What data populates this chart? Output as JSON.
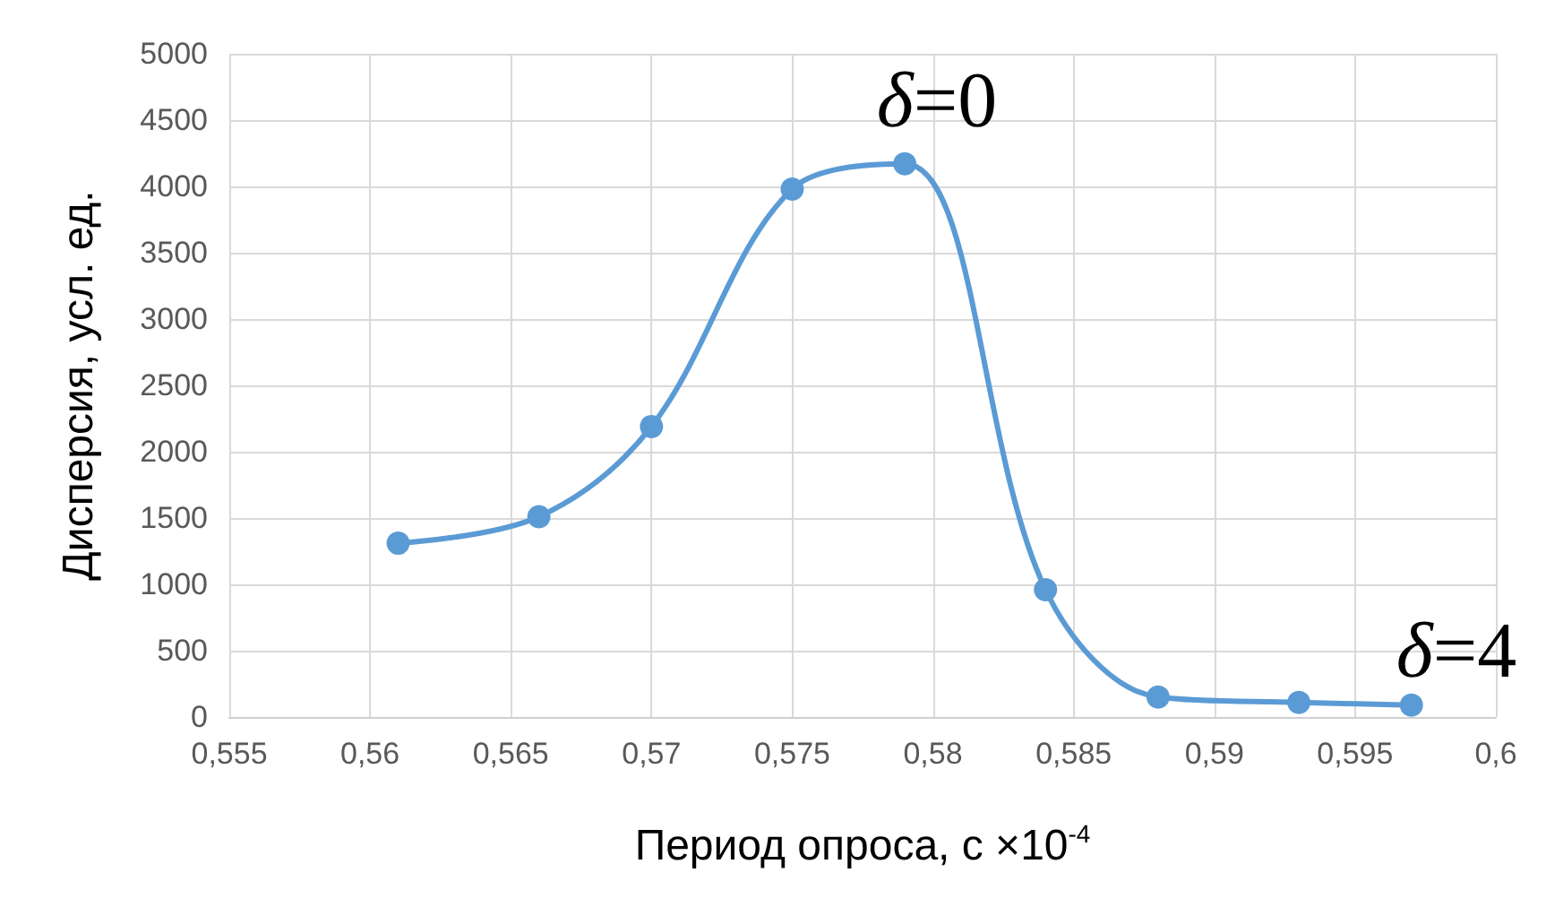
{
  "chart_data": {
    "type": "line",
    "xlabel": "Период опроса, с ×10$^{-4}$",
    "ylabel": "Дисперсия, усл. ед.",
    "x": [
      0.561,
      0.566,
      0.57,
      0.575,
      0.579,
      0.584,
      0.588,
      0.593,
      0.597
    ],
    "series": [
      {
        "color": "#5b9bd5",
        "values": [
          1310,
          1510,
          2190,
          3980,
          4170,
          960,
          150,
          110,
          90
        ]
      }
    ],
    "xlim": [
      0.555,
      0.6
    ],
    "xticks": [
      {
        "value": 0.555,
        "label": "0,555"
      },
      {
        "value": 0.56,
        "label": "0,56"
      },
      {
        "value": 0.565,
        "label": "0,565"
      },
      {
        "value": 0.57,
        "label": "0,57"
      },
      {
        "value": 0.575,
        "label": "0,575"
      },
      {
        "value": 0.58,
        "label": "0,58"
      },
      {
        "value": 0.585,
        "label": "0,585"
      },
      {
        "value": 0.59,
        "label": "0,59"
      },
      {
        "value": 0.595,
        "label": "0,595"
      },
      {
        "value": 0.6,
        "label": "0,6"
      }
    ],
    "ylim": [
      0,
      5000
    ],
    "yticks": [
      0,
      500,
      1000,
      1500,
      2000,
      2500,
      3000,
      3500,
      4000,
      4500,
      5000
    ],
    "grid": true,
    "marker": "circle",
    "line_style": "solid",
    "annotations": [
      "δ=0",
      "δ=4"
    ]
  }
}
